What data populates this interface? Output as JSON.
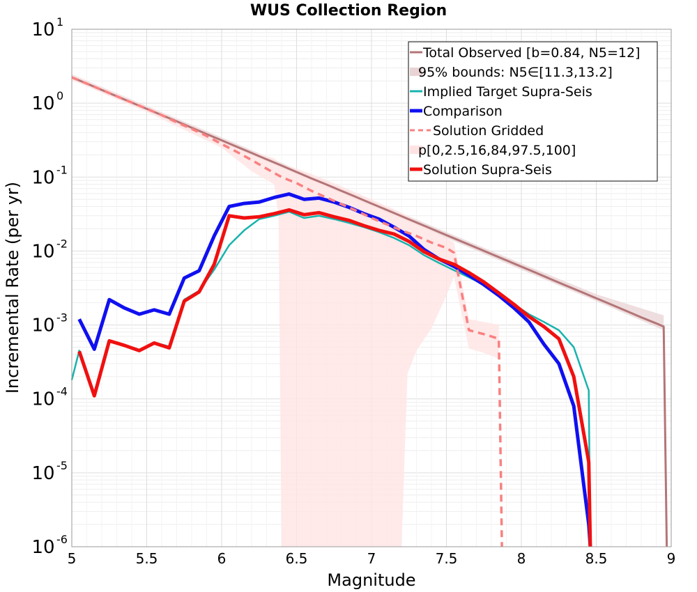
{
  "chart_data": {
    "type": "line",
    "title": "WUS Collection Region",
    "xlabel": "Magnitude",
    "ylabel": "Incremental Rate (per yr)",
    "xlim": [
      5,
      9
    ],
    "ylim": [
      1e-06,
      10
    ],
    "yscale": "log",
    "grid": true,
    "legend_position": "top-right",
    "xticks": [
      "5",
      "5.5",
      "6",
      "6.5",
      "7",
      "7.5",
      "8",
      "8.5",
      "9"
    ],
    "yticks": [
      {
        "base": "10",
        "exp": "-6",
        "value": 1e-06
      },
      {
        "base": "10",
        "exp": "-5",
        "value": 1e-05
      },
      {
        "base": "10",
        "exp": "-4",
        "value": 0.0001
      },
      {
        "base": "10",
        "exp": "-3",
        "value": 0.001
      },
      {
        "base": "10",
        "exp": "-2",
        "value": 0.01
      },
      {
        "base": "10",
        "exp": "-1",
        "value": 0.1
      },
      {
        "base": "10",
        "exp": "0",
        "value": 1
      },
      {
        "base": "10",
        "exp": "1",
        "value": 10
      }
    ],
    "legend": [
      {
        "label": "Total Observed [b=0.84, N5=12]",
        "color": "#b37577",
        "style": "line"
      },
      {
        "label": "95% bounds: N5∈[11.3,13.2]",
        "color": "#e9d3d4",
        "style": "band"
      },
      {
        "label": "Implied Target Supra-Seis",
        "color": "#17b3ad",
        "style": "line"
      },
      {
        "label": "Comparison",
        "color": "#1010f0",
        "style": "thick"
      },
      {
        "label": "Solution Gridded",
        "color": "#f98080",
        "style": "dashed"
      },
      {
        "label": "p[0,2.5,16,84,97.5,100]",
        "color": "#ffe3e3",
        "style": "band"
      },
      {
        "label": "Solution Supra-Seis",
        "color": "#f01010",
        "style": "thick"
      }
    ],
    "series": [
      {
        "name": "Total Observed [b=0.84, N5=12]",
        "color": "#b37577",
        "x": [
          5.0,
          5.1,
          5.2,
          5.3,
          5.4,
          5.5,
          5.6,
          5.7,
          5.8,
          5.9,
          6.0,
          6.1,
          6.2,
          6.3,
          6.4,
          6.5,
          6.6,
          6.7,
          6.8,
          6.9,
          7.0,
          7.1,
          7.2,
          7.3,
          7.4,
          7.5,
          7.6,
          7.7,
          7.8,
          7.9,
          8.0,
          8.1,
          8.2,
          8.3,
          8.4,
          8.5,
          8.6,
          8.7,
          8.8,
          8.9,
          8.95,
          8.97
        ],
        "y": [
          2.24,
          1.84,
          1.51,
          1.24,
          1.02,
          0.84,
          0.69,
          0.57,
          0.465,
          0.382,
          0.314,
          0.258,
          0.212,
          0.174,
          0.143,
          0.117,
          0.096,
          0.0792,
          0.0651,
          0.0535,
          0.0439,
          0.0361,
          0.0296,
          0.0243,
          0.02,
          0.0164,
          0.0135,
          0.0111,
          0.0091,
          0.00748,
          0.00614,
          0.00505,
          0.00414,
          0.0034,
          0.0028,
          0.0023,
          0.00189,
          0.00155,
          0.00127,
          0.00105,
          0.00095,
          1e-06
        ]
      },
      {
        "name": "Implied Target Supra-Seis",
        "color": "#17b3ad",
        "x": [
          5.0,
          5.05,
          5.15,
          5.25,
          5.35,
          5.45,
          5.55,
          5.65,
          5.75,
          5.85,
          5.95,
          6.05,
          6.15,
          6.25,
          6.35,
          6.45,
          6.55,
          6.65,
          6.75,
          6.85,
          6.95,
          7.05,
          7.15,
          7.25,
          7.35,
          7.45,
          7.55,
          7.65,
          7.75,
          7.85,
          7.95,
          8.05,
          8.15,
          8.25,
          8.35,
          8.45,
          8.46
        ],
        "y": [
          0.00018,
          0.00045,
          0.00011,
          0.00062,
          0.00052,
          0.00046,
          0.00058,
          0.00051,
          0.0022,
          0.0029,
          0.0056,
          0.012,
          0.019,
          0.027,
          0.03,
          0.034,
          0.028,
          0.03,
          0.027,
          0.024,
          0.021,
          0.018,
          0.015,
          0.012,
          0.0088,
          0.0069,
          0.0055,
          0.0044,
          0.0035,
          0.0026,
          0.0019,
          0.0014,
          0.0011,
          0.00085,
          0.0005,
          0.00013,
          1e-06
        ]
      },
      {
        "name": "Comparison",
        "color": "#1010f0",
        "x": [
          5.05,
          5.15,
          5.25,
          5.35,
          5.45,
          5.55,
          5.65,
          5.75,
          5.85,
          5.95,
          6.05,
          6.15,
          6.25,
          6.35,
          6.45,
          6.55,
          6.65,
          6.75,
          6.85,
          6.95,
          7.05,
          7.15,
          7.25,
          7.35,
          7.45,
          7.55,
          7.65,
          7.75,
          7.85,
          7.95,
          8.05,
          8.15,
          8.25,
          8.35,
          8.45,
          8.46
        ],
        "y": [
          0.0012,
          0.00047,
          0.0022,
          0.0017,
          0.0014,
          0.0016,
          0.0014,
          0.0043,
          0.0054,
          0.016,
          0.04,
          0.044,
          0.046,
          0.053,
          0.059,
          0.05,
          0.052,
          0.046,
          0.039,
          0.032,
          0.027,
          0.021,
          0.016,
          0.0105,
          0.0078,
          0.0062,
          0.0047,
          0.0035,
          0.0025,
          0.0017,
          0.0011,
          0.00055,
          0.0003,
          8e-05,
          2e-06,
          1e-06
        ]
      },
      {
        "name": "Solution Gridded",
        "color": "#f98080",
        "x": [
          5.0,
          5.1,
          5.2,
          5.3,
          5.4,
          5.5,
          5.6,
          5.7,
          5.8,
          5.9,
          6.0,
          6.1,
          6.2,
          6.3,
          6.4,
          6.5,
          6.6,
          6.7,
          6.8,
          6.9,
          7.0,
          7.1,
          7.2,
          7.3,
          7.4,
          7.5,
          7.55,
          7.65,
          7.75,
          7.85,
          7.87
        ],
        "y": [
          2.24,
          1.84,
          1.51,
          1.24,
          1.02,
          0.84,
          0.69,
          0.55,
          0.45,
          0.36,
          0.28,
          0.22,
          0.17,
          0.13,
          0.1,
          0.083,
          0.065,
          0.053,
          0.043,
          0.035,
          0.028,
          0.023,
          0.019,
          0.016,
          0.013,
          0.011,
          0.0095,
          0.00085,
          0.00075,
          0.00065,
          1e-06
        ]
      },
      {
        "name": "Solution Supra-Seis",
        "color": "#f01010",
        "x": [
          5.05,
          5.15,
          5.25,
          5.35,
          5.45,
          5.55,
          5.65,
          5.75,
          5.85,
          5.95,
          6.05,
          6.15,
          6.25,
          6.35,
          6.45,
          6.55,
          6.65,
          6.75,
          6.85,
          6.95,
          7.05,
          7.15,
          7.25,
          7.35,
          7.45,
          7.55,
          7.65,
          7.75,
          7.85,
          7.95,
          8.05,
          8.15,
          8.25,
          8.35,
          8.45,
          8.46
        ],
        "y": [
          0.00044,
          0.00011,
          0.00061,
          0.00053,
          0.00045,
          0.00057,
          0.00049,
          0.0021,
          0.0028,
          0.0066,
          0.03,
          0.028,
          0.029,
          0.032,
          0.036,
          0.031,
          0.033,
          0.029,
          0.026,
          0.022,
          0.019,
          0.017,
          0.0135,
          0.0098,
          0.0078,
          0.0066,
          0.0051,
          0.0038,
          0.0027,
          0.0019,
          0.0013,
          0.00095,
          0.00065,
          0.0002,
          1.4e-05,
          1e-06
        ]
      }
    ],
    "bands": [
      {
        "name": "95% bounds: N5∈[11.3,13.2]",
        "color": "#e9d3d4",
        "x": [
          5.0,
          5.5,
          6.0,
          6.5,
          7.0,
          7.5,
          8.0,
          8.5,
          8.95
        ],
        "lower": [
          2.1,
          0.78,
          0.29,
          0.108,
          0.04,
          0.015,
          0.0056,
          0.0021,
          0.00085
        ],
        "upper": [
          2.45,
          0.92,
          0.345,
          0.128,
          0.048,
          0.018,
          0.0068,
          0.0026,
          0.00135
        ]
      },
      {
        "name": "p[0,2.5,16,84,97.5,100]",
        "color": "#ffe3e3",
        "x": [
          5.0,
          5.5,
          6.0,
          6.2,
          6.35,
          6.38,
          6.4,
          6.5,
          6.6,
          6.8,
          7.0,
          7.2,
          7.24,
          7.3,
          7.4,
          7.5,
          7.55,
          7.65,
          7.75,
          7.85
        ],
        "lower": [
          2.05,
          0.76,
          0.25,
          0.12,
          0.08,
          0.03,
          1e-06,
          1e-06,
          1e-06,
          1e-06,
          1e-06,
          1e-06,
          0.00022,
          0.00045,
          0.0009,
          0.0025,
          0.0045,
          0.00048,
          0.00042,
          0.00035
        ],
        "upper": [
          2.4,
          0.9,
          0.33,
          0.22,
          0.18,
          0.16,
          0.15,
          0.13,
          0.11,
          0.075,
          0.05,
          0.033,
          0.03,
          0.025,
          0.019,
          0.015,
          0.013,
          0.0012,
          0.0011,
          0.001
        ]
      }
    ]
  }
}
